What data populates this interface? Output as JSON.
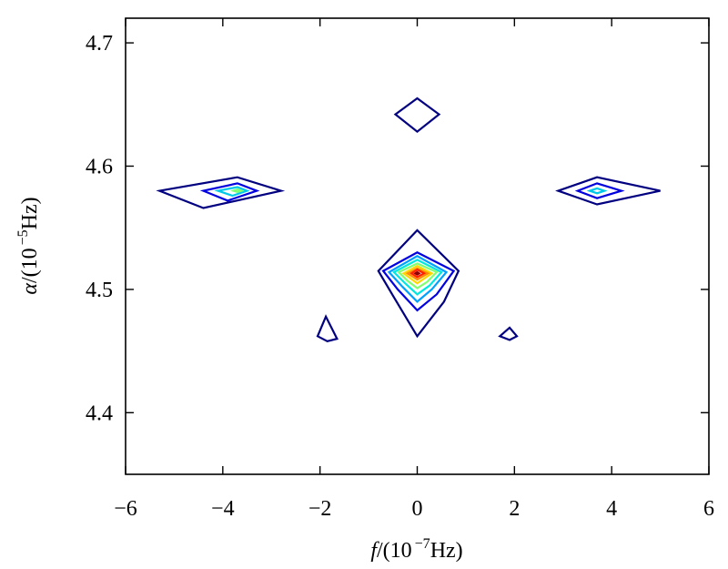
{
  "chart_data": {
    "type": "contour",
    "title": "",
    "xlabel": {
      "var": "f",
      "prefix": "/(10",
      "exp": "−7",
      "suffix": "Hz)"
    },
    "ylabel": {
      "var": "α",
      "prefix": "/(10",
      "exp": "−5",
      "suffix": "Hz)"
    },
    "xlim": [
      -6,
      6
    ],
    "ylim": [
      4.35,
      4.72
    ],
    "x_ticks": [
      -6,
      -4,
      -2,
      0,
      2,
      4,
      6
    ],
    "x_tick_labels": [
      "−6",
      "−4",
      "−2",
      "0",
      "2",
      "4",
      "6"
    ],
    "y_ticks": [
      4.4,
      4.5,
      4.6,
      4.7
    ],
    "y_tick_labels": [
      "4.4",
      "4.5",
      "4.6",
      "4.7"
    ],
    "grid": false,
    "contours": [
      {
        "color": "#000080",
        "points": [
          [
            -0.45,
            4.642
          ],
          [
            0,
            4.655
          ],
          [
            0.45,
            4.642
          ],
          [
            0,
            4.628
          ]
        ]
      },
      {
        "color": "#000080",
        "points": [
          [
            -5.3,
            4.58
          ],
          [
            -3.7,
            4.591
          ],
          [
            -2.8,
            4.58
          ],
          [
            -4.4,
            4.566
          ]
        ]
      },
      {
        "color": "#0000e0",
        "points": [
          [
            -4.4,
            4.58
          ],
          [
            -3.7,
            4.586
          ],
          [
            -3.3,
            4.58
          ],
          [
            -3.9,
            4.572
          ]
        ]
      },
      {
        "color": "#00c8e8",
        "points": [
          [
            -4.1,
            4.58
          ],
          [
            -3.7,
            4.583
          ],
          [
            -3.5,
            4.58
          ],
          [
            -3.8,
            4.576
          ]
        ]
      },
      {
        "color": "#80ff70",
        "points": [
          [
            -3.78,
            4.58
          ],
          [
            -3.7,
            4.581
          ],
          [
            -3.62,
            4.58
          ],
          [
            -3.7,
            4.579
          ]
        ]
      },
      {
        "color": "#000080",
        "points": [
          [
            2.9,
            4.58
          ],
          [
            3.7,
            4.591
          ],
          [
            5.0,
            4.58
          ],
          [
            3.7,
            4.569
          ]
        ]
      },
      {
        "color": "#0000e0",
        "points": [
          [
            3.3,
            4.58
          ],
          [
            3.7,
            4.586
          ],
          [
            4.2,
            4.58
          ],
          [
            3.7,
            4.574
          ]
        ]
      },
      {
        "color": "#00c8e8",
        "points": [
          [
            3.55,
            4.58
          ],
          [
            3.7,
            4.582
          ],
          [
            3.85,
            4.58
          ],
          [
            3.7,
            4.578
          ]
        ]
      },
      {
        "color": "#000080",
        "points": [
          [
            -0.8,
            4.515
          ],
          [
            0,
            4.548
          ],
          [
            0.85,
            4.515
          ],
          [
            0.55,
            4.49
          ],
          [
            0,
            4.462
          ],
          [
            -0.5,
            4.495
          ]
        ]
      },
      {
        "color": "#0000e0",
        "points": [
          [
            -0.7,
            4.515
          ],
          [
            0,
            4.53
          ],
          [
            0.75,
            4.515
          ],
          [
            0.4,
            4.496
          ],
          [
            0,
            4.483
          ],
          [
            -0.4,
            4.5
          ]
        ]
      },
      {
        "color": "#00a0ff",
        "points": [
          [
            -0.58,
            4.514
          ],
          [
            0,
            4.527
          ],
          [
            0.6,
            4.514
          ],
          [
            0.3,
            4.5
          ],
          [
            0,
            4.49
          ],
          [
            -0.3,
            4.502
          ]
        ]
      },
      {
        "color": "#00e8e0",
        "points": [
          [
            -0.48,
            4.514
          ],
          [
            0,
            4.524
          ],
          [
            0.5,
            4.514
          ],
          [
            0.25,
            4.503
          ],
          [
            0,
            4.496
          ],
          [
            -0.25,
            4.505
          ]
        ]
      },
      {
        "color": "#80ff70",
        "points": [
          [
            -0.38,
            4.514
          ],
          [
            0,
            4.521
          ],
          [
            0.4,
            4.514
          ],
          [
            0.2,
            4.506
          ],
          [
            0,
            4.501
          ],
          [
            -0.2,
            4.507
          ]
        ]
      },
      {
        "color": "#ffd700",
        "points": [
          [
            -0.28,
            4.513
          ],
          [
            0,
            4.519
          ],
          [
            0.3,
            4.513
          ],
          [
            0,
            4.505
          ]
        ]
      },
      {
        "color": "#ff8c00",
        "points": [
          [
            -0.2,
            4.513
          ],
          [
            0,
            4.517
          ],
          [
            0.22,
            4.513
          ],
          [
            0,
            4.508
          ]
        ]
      },
      {
        "color": "#ff2000",
        "points": [
          [
            -0.12,
            4.513
          ],
          [
            0,
            4.516
          ],
          [
            0.14,
            4.513
          ],
          [
            0,
            4.51
          ]
        ]
      },
      {
        "color": "#900000",
        "points": [
          [
            -0.04,
            4.513
          ],
          [
            0,
            4.514
          ],
          [
            0.04,
            4.513
          ],
          [
            0,
            4.512
          ]
        ]
      },
      {
        "color": "#000080",
        "points": [
          [
            -2.05,
            4.462
          ],
          [
            -1.88,
            4.478
          ],
          [
            -1.65,
            4.46
          ],
          [
            -1.85,
            4.458
          ]
        ]
      },
      {
        "color": "#000080",
        "points": [
          [
            1.7,
            4.462
          ],
          [
            1.9,
            4.469
          ],
          [
            2.05,
            4.462
          ],
          [
            1.9,
            4.459
          ]
        ]
      }
    ]
  }
}
